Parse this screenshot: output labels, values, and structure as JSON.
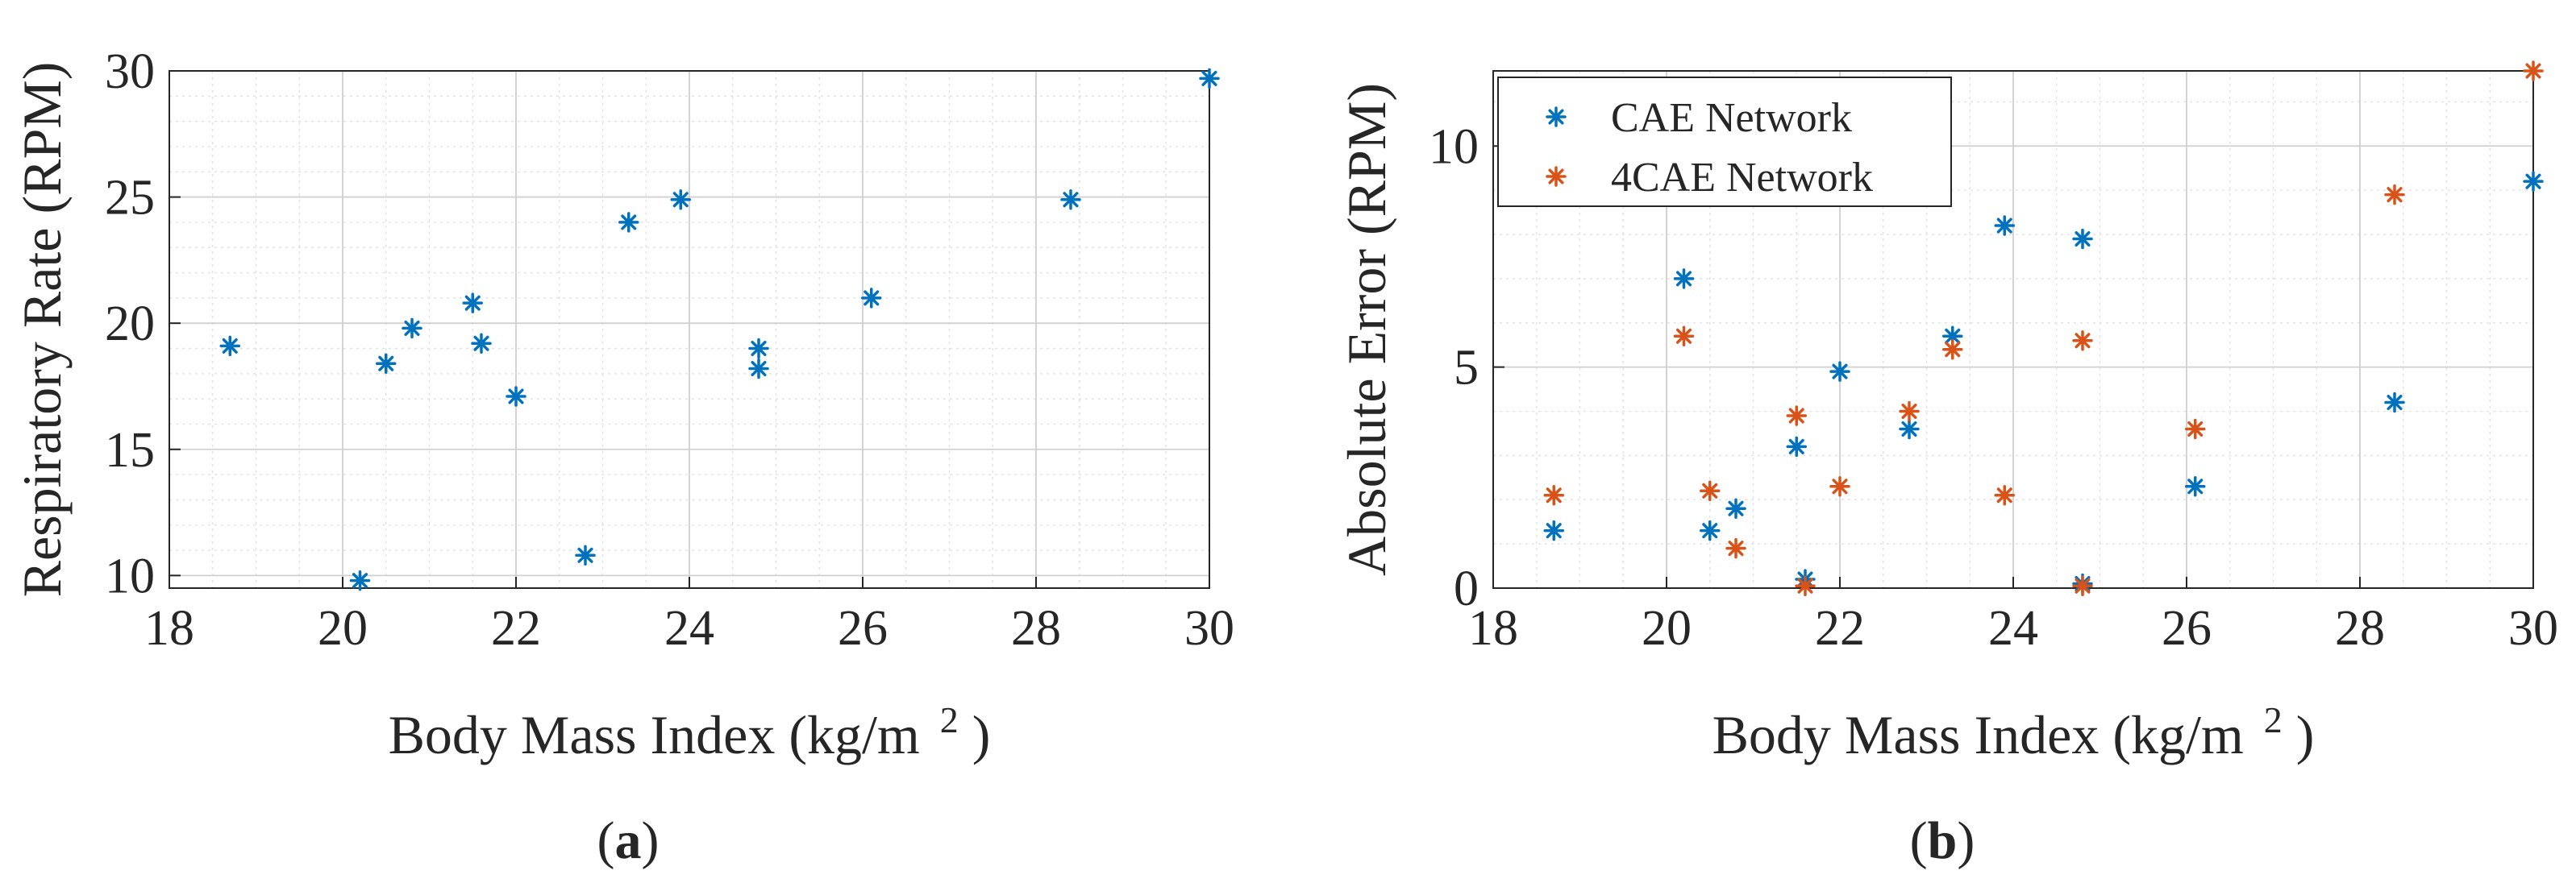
{
  "chart_data": [
    {
      "type": "scatter",
      "caption_letter": "a",
      "xlabel": "Body Mass Index (kg/m",
      "xlabel_sup": "2",
      "xlabel_close": ")",
      "ylabel": "Respiratory Rate (RPM)",
      "xlim": [
        18,
        30
      ],
      "ylim": [
        9.5,
        30
      ],
      "xticks": [
        18,
        20,
        22,
        24,
        26,
        28,
        30
      ],
      "yticks": [
        10,
        15,
        20,
        25,
        30
      ],
      "grid": true,
      "minor_grid": true,
      "series": [
        {
          "color": "#0072BD",
          "marker": "asterisk",
          "x": [
            18.7,
            20.2,
            20.5,
            20.8,
            21.5,
            21.6,
            22.0,
            22.8,
            23.3,
            23.9,
            24.8,
            24.8,
            26.1,
            28.4,
            30.0
          ],
          "y": [
            19.1,
            9.8,
            18.4,
            19.8,
            20.8,
            19.2,
            17.1,
            10.8,
            24.0,
            24.9,
            19.0,
            18.2,
            21.0,
            24.9,
            29.7
          ]
        }
      ]
    },
    {
      "type": "scatter",
      "caption_letter": "b",
      "xlabel": "Body Mass Index (kg/m",
      "xlabel_sup": "2",
      "xlabel_close": ")",
      "ylabel": "Absolute Error (RPM)",
      "xlim": [
        18,
        30
      ],
      "ylim": [
        0,
        11.7
      ],
      "xticks": [
        18,
        20,
        22,
        24,
        26,
        28,
        30
      ],
      "yticks": [
        0,
        5,
        10
      ],
      "grid": true,
      "minor_grid": true,
      "legend_position": "top-left",
      "series": [
        {
          "name": "CAE Network",
          "color": "#0072BD",
          "marker": "asterisk",
          "x": [
            18.7,
            20.2,
            20.5,
            20.8,
            21.5,
            21.6,
            22.0,
            22.8,
            23.3,
            23.9,
            24.8,
            24.8,
            26.1,
            28.4,
            30.0
          ],
          "y": [
            1.3,
            7.0,
            1.3,
            1.8,
            3.2,
            0.2,
            4.9,
            3.6,
            5.7,
            8.2,
            7.9,
            0.1,
            2.3,
            4.2,
            9.2
          ]
        },
        {
          "name": "4CAE Network",
          "color": "#D95319",
          "marker": "asterisk",
          "x": [
            18.7,
            20.2,
            20.5,
            20.8,
            21.5,
            21.6,
            22.0,
            22.8,
            23.3,
            23.9,
            24.8,
            24.8,
            26.1,
            28.4,
            30.0
          ],
          "y": [
            2.1,
            5.7,
            2.2,
            0.9,
            3.9,
            0.05,
            2.3,
            4.0,
            5.4,
            2.1,
            5.6,
            0.05,
            3.6,
            8.9,
            11.7
          ]
        }
      ]
    }
  ]
}
